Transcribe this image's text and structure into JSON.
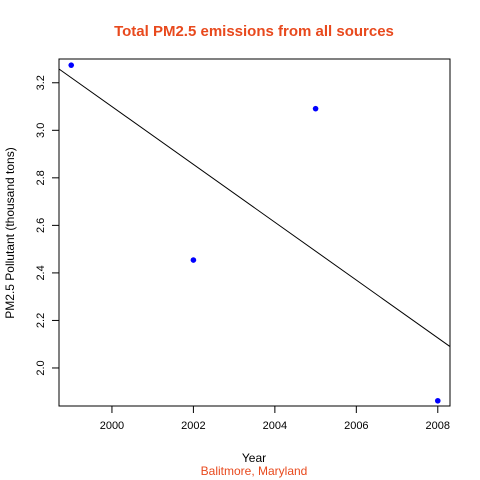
{
  "chart_data": {
    "type": "scatter",
    "title": "Total PM2.5 emissions from all sources",
    "subtitle": "Balitmore, Maryland",
    "xlabel": "Year",
    "ylabel": "PM2.5 Pollutant (thousand tons)",
    "xlim": [
      1998.7,
      2008.3
    ],
    "ylim": [
      1.84,
      3.3
    ],
    "x_ticks": [
      2000,
      2002,
      2004,
      2006,
      2008
    ],
    "y_ticks": [
      2.0,
      2.2,
      2.4,
      2.6,
      2.8,
      3.0,
      3.2
    ],
    "x_tick_labels": [
      "2000",
      "2002",
      "2004",
      "2006",
      "2008"
    ],
    "y_tick_labels": [
      "2.0",
      "2.2",
      "2.4",
      "2.6",
      "2.8",
      "3.0",
      "3.2"
    ],
    "points": [
      {
        "x": 1999,
        "y": 3.274
      },
      {
        "x": 2002,
        "y": 2.454
      },
      {
        "x": 2005,
        "y": 3.091
      },
      {
        "x": 2008,
        "y": 1.862
      }
    ],
    "trend_line": {
      "x": [
        1998.7,
        2008.3
      ],
      "y": [
        3.258,
        2.09
      ]
    },
    "grid": false,
    "legend": "none",
    "colors": {
      "title": "#E8491D",
      "subtitle": "#E8491D",
      "points": "#0000FF",
      "trend": "#000000"
    }
  }
}
